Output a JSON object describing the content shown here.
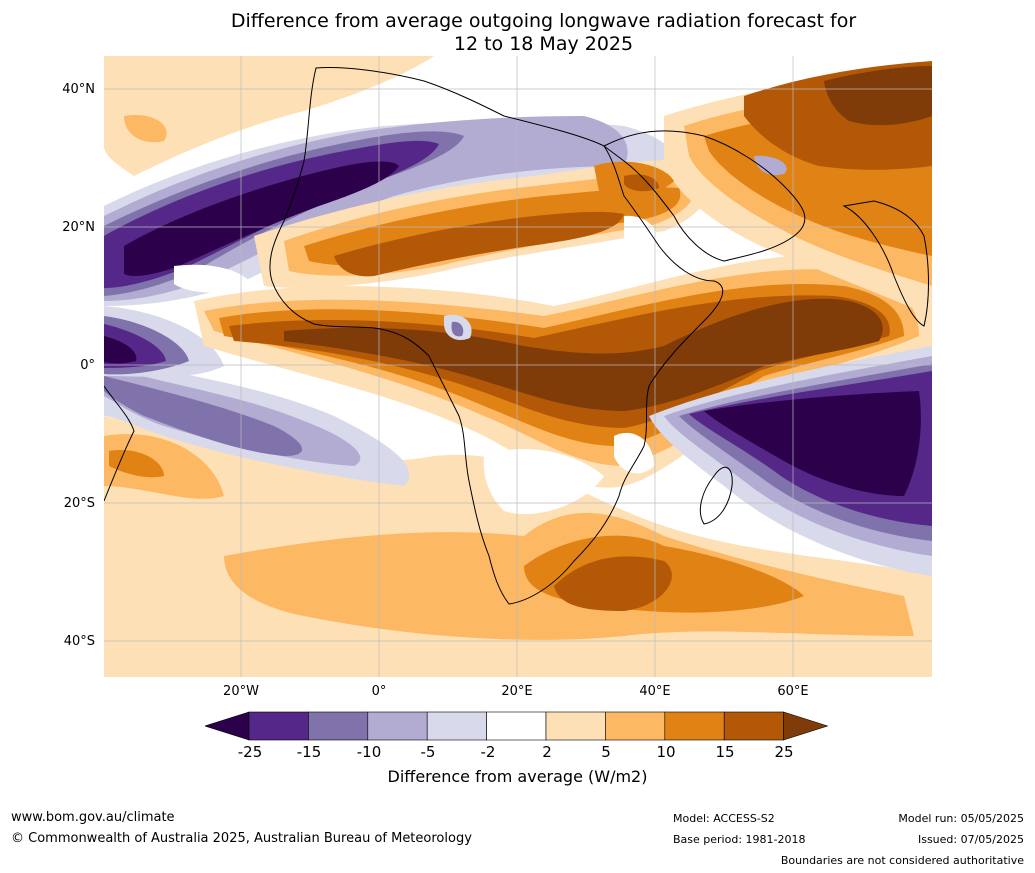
{
  "title": {
    "line1": "Difference from average outgoing longwave radiation forecast for",
    "line2": "12 to 18 May 2025"
  },
  "map": {
    "lat_labels": [
      "40°N",
      "20°N",
      "0°",
      "20°S",
      "40°S"
    ],
    "lon_labels": [
      "20°W",
      "0°",
      "20°E",
      "40°E",
      "60°E"
    ],
    "colors": {
      "lt_-25": "#2d004b",
      "-25_-15": "#542788",
      "-15_-10": "#8073ac",
      "-10_-5": "#b2abd2",
      "-5_-2": "#d8daeb",
      "-2_2": "#ffffff",
      "2_5": "#fee0b6",
      "5_10": "#fdb863",
      "10_15": "#e08214",
      "15_25": "#b35806",
      "gt_25": "#7f3b08"
    }
  },
  "colorbar": {
    "ticks": [
      "-25",
      "-15",
      "-10",
      "-5",
      "-2",
      "2",
      "5",
      "10",
      "15",
      "25"
    ],
    "colors": [
      "#2d004b",
      "#542788",
      "#8073ac",
      "#b2abd2",
      "#d8daeb",
      "#ffffff",
      "#fee0b6",
      "#fdb863",
      "#e08214",
      "#b35806",
      "#7f3b08"
    ],
    "label": "Difference from average (W/m2)"
  },
  "footer": {
    "website": "www.bom.gov.au/climate",
    "copyright": "© Commonwealth of Australia 2025, Australian Bureau of Meteorology",
    "model": "Model: ACCESS-S2",
    "base_period": "Base period: 1981-2018",
    "model_run": "Model run: 05/05/2025",
    "issued": "Issued: 07/05/2025",
    "disclaimer": "Boundaries are not considered authoritative"
  }
}
